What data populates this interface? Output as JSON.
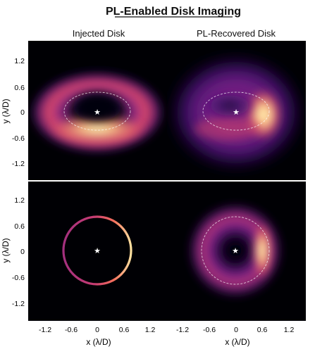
{
  "chart_data": {
    "type": "heatmap",
    "title": "PL-Enabled Disk Imaging",
    "column_titles": [
      "Injected Disk",
      "PL-Recovered Disk"
    ],
    "xlabel": "x (λ/D)",
    "ylabel": "y (λ/D)",
    "xlim": [
      -1.55,
      1.55
    ],
    "ylim": [
      -1.55,
      1.55
    ],
    "xticks": [
      -1.2,
      -0.6,
      0,
      0.6,
      1.2
    ],
    "xtick_labels": [
      "-1.2",
      "-0.6",
      "0",
      "0.6",
      "1.2"
    ],
    "yticks": [
      1.2,
      0.6,
      0,
      -0.6,
      -1.2
    ],
    "ytick_labels": [
      "1.2",
      "0.6",
      "0",
      "-0.6",
      "-1.2"
    ],
    "colormap": "magma",
    "star_marker": {
      "x": 0,
      "y": 0,
      "glyph": "★"
    },
    "reference_circle_radius": 0.75,
    "panels": [
      {
        "row": 1,
        "col": 1,
        "content": "injected disk (inclined ring, bright lower side)",
        "ring_rx": 0.75,
        "ring_ry": 0.42,
        "bright_side": "bottom"
      },
      {
        "row": 1,
        "col": 2,
        "content": "PL-recovered disk (inclined, bright right side)",
        "ring_rx": 0.75,
        "ring_ry": 0.42,
        "bright_side": "right"
      },
      {
        "row": 2,
        "col": 1,
        "content": "injected thin ring (face-on)",
        "ring_r": 0.75,
        "bright_side": "right"
      },
      {
        "row": 2,
        "col": 2,
        "content": "PL-recovered ring (face-on, bright right crescent)",
        "ring_r": 0.75,
        "bright_side": "right"
      }
    ]
  }
}
